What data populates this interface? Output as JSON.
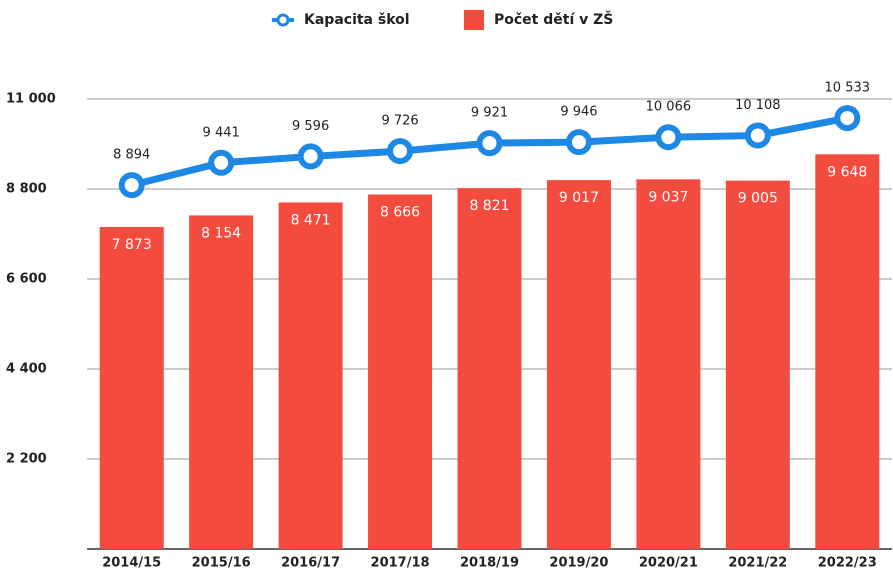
{
  "chart_data": {
    "type": "combo",
    "categories": [
      "2014/15",
      "2015/16",
      "2016/17",
      "2017/18",
      "2018/19",
      "2019/20",
      "2020/21",
      "2021/22",
      "2022/23"
    ],
    "series": [
      {
        "name": "Kapacita škol",
        "type": "line",
        "color": "#1e88e5",
        "values": [
          8894,
          9441,
          9596,
          9726,
          9921,
          9946,
          10066,
          10108,
          10533
        ],
        "value_labels": [
          "8 894",
          "9 441",
          "9 596",
          "9 726",
          "9 921",
          "9 946",
          "10 066",
          "10 108",
          "10 533"
        ]
      },
      {
        "name": "Počet dětí v ZŠ",
        "type": "bar",
        "color": "#f44b3f",
        "values": [
          7873,
          8154,
          8471,
          8666,
          8821,
          9017,
          9037,
          9005,
          9648
        ],
        "value_labels": [
          "7 873",
          "8 154",
          "8 471",
          "8 666",
          "8 821",
          "9 017",
          "9 037",
          "9 005",
          "9 648"
        ]
      }
    ],
    "ylim": [
      0,
      11000
    ],
    "yticks": [
      {
        "value": 2200,
        "label": "2 200"
      },
      {
        "value": 4400,
        "label": "4 400"
      },
      {
        "value": 6600,
        "label": "6 600"
      },
      {
        "value": 8800,
        "label": "8 800"
      },
      {
        "value": 11000,
        "label": "11 000"
      }
    ],
    "grid": true,
    "legend": "top"
  }
}
